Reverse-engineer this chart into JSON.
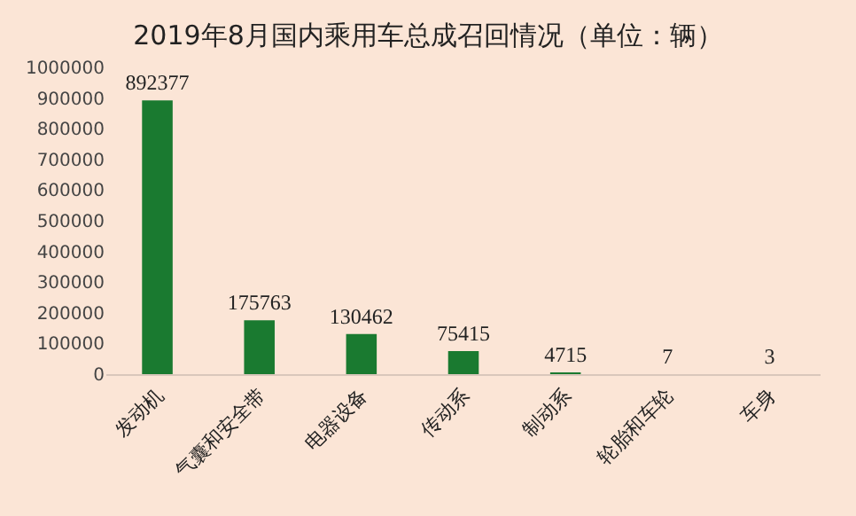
{
  "chart_data": {
    "type": "bar",
    "title": "2019年8月国内乘用车总成召回情况（单位：辆）",
    "categories": [
      "发动机",
      "气囊和安全带",
      "电器设备",
      "传动系",
      "制动系",
      "轮胎和车轮",
      "车身"
    ],
    "values": [
      892377,
      175763,
      130462,
      75415,
      4715,
      7,
      3
    ],
    "color": "#1a7a30",
    "ylim": [
      0,
      1000000
    ],
    "yticks": [
      0,
      100000,
      200000,
      300000,
      400000,
      500000,
      600000,
      700000,
      800000,
      900000,
      1000000
    ],
    "data_labels": true,
    "grid": false,
    "legend": false
  }
}
